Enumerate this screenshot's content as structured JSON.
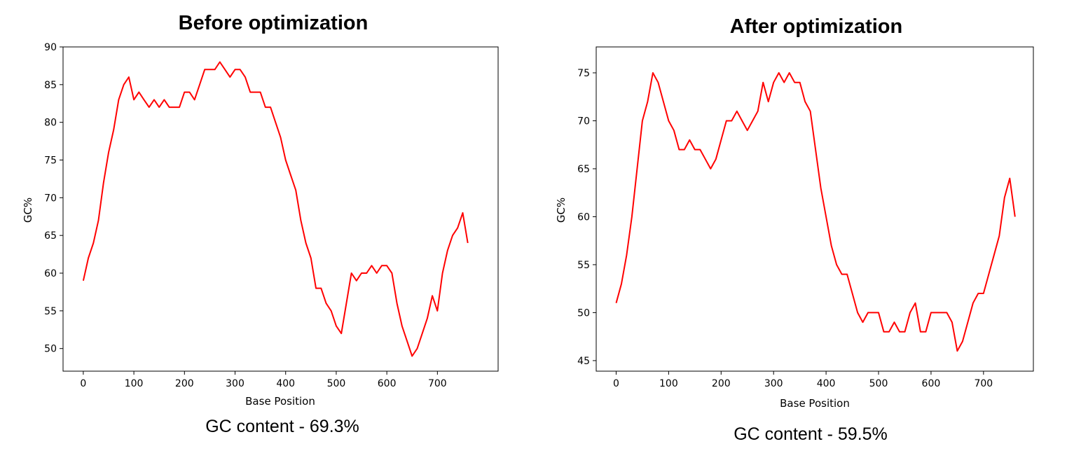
{
  "chart_data": [
    {
      "type": "line",
      "title": "Before optimization",
      "xlabel": "Base Position",
      "ylabel": "GC%",
      "caption": "GC content - 69.3%",
      "xlim": [
        -40,
        820
      ],
      "ylim": [
        47,
        90
      ],
      "xticks": [
        0,
        100,
        200,
        300,
        400,
        500,
        600,
        700
      ],
      "yticks": [
        50,
        55,
        60,
        65,
        70,
        75,
        80,
        85,
        90
      ],
      "color": "#ff0000",
      "grid": false,
      "x": [
        0,
        10,
        20,
        30,
        40,
        50,
        60,
        70,
        80,
        90,
        100,
        110,
        120,
        130,
        140,
        150,
        160,
        170,
        180,
        190,
        200,
        210,
        220,
        230,
        240,
        250,
        260,
        270,
        280,
        290,
        300,
        310,
        320,
        330,
        340,
        350,
        360,
        370,
        380,
        390,
        400,
        410,
        420,
        430,
        440,
        450,
        460,
        470,
        480,
        490,
        500,
        510,
        520,
        530,
        540,
        550,
        560,
        570,
        580,
        590,
        600,
        610,
        620,
        630,
        640,
        650,
        660,
        670,
        680,
        690,
        700,
        710,
        720,
        730,
        740,
        750,
        760
      ],
      "y": [
        59,
        62,
        64,
        67,
        72,
        76,
        79,
        83,
        85,
        86,
        83,
        84,
        83,
        82,
        83,
        82,
        83,
        82,
        82,
        82,
        84,
        84,
        83,
        85,
        87,
        87,
        87,
        88,
        87,
        86,
        87,
        87,
        86,
        84,
        84,
        84,
        82,
        82,
        80,
        78,
        75,
        73,
        71,
        67,
        64,
        62,
        58,
        58,
        56,
        55,
        53,
        52,
        56,
        60,
        59,
        60,
        60,
        61,
        60,
        61,
        61,
        60,
        56,
        53,
        51,
        49,
        50,
        52,
        54,
        57,
        55,
        60,
        63,
        65,
        66,
        68,
        64
      ]
    },
    {
      "type": "line",
      "title": "After optimization",
      "xlabel": "Base Position",
      "ylabel": "GC%",
      "caption": "GC content - 59.5%",
      "xlim": [
        -38,
        795
      ],
      "ylim": [
        43.9,
        77.7
      ],
      "xticks": [
        0,
        100,
        200,
        300,
        400,
        500,
        600,
        700
      ],
      "yticks": [
        45,
        50,
        55,
        60,
        65,
        70,
        75
      ],
      "color": "#ff0000",
      "grid": false,
      "x": [
        0,
        10,
        20,
        30,
        40,
        50,
        60,
        70,
        80,
        90,
        100,
        110,
        120,
        130,
        140,
        150,
        160,
        170,
        180,
        190,
        200,
        210,
        220,
        230,
        240,
        250,
        260,
        270,
        280,
        290,
        300,
        310,
        320,
        330,
        340,
        350,
        360,
        370,
        380,
        390,
        400,
        410,
        420,
        430,
        440,
        450,
        460,
        470,
        480,
        490,
        500,
        510,
        520,
        530,
        540,
        550,
        560,
        570,
        580,
        590,
        600,
        610,
        620,
        630,
        640,
        650,
        660,
        670,
        680,
        690,
        700,
        710,
        720,
        730,
        740,
        750,
        760
      ],
      "y": [
        51,
        53,
        56,
        60,
        65,
        70,
        72,
        75,
        74,
        72,
        70,
        69,
        67,
        67,
        68,
        67,
        67,
        66,
        65,
        66,
        68,
        70,
        70,
        71,
        70,
        69,
        70,
        71,
        74,
        72,
        74,
        75,
        74,
        75,
        74,
        74,
        72,
        71,
        67,
        63,
        60,
        57,
        55,
        54,
        54,
        52,
        50,
        49,
        50,
        50,
        50,
        48,
        48,
        49,
        48,
        48,
        50,
        51,
        48,
        48,
        50,
        50,
        50,
        50,
        49,
        46,
        47,
        49,
        51,
        52,
        52,
        54,
        56,
        58,
        62,
        64,
        60
      ]
    }
  ]
}
